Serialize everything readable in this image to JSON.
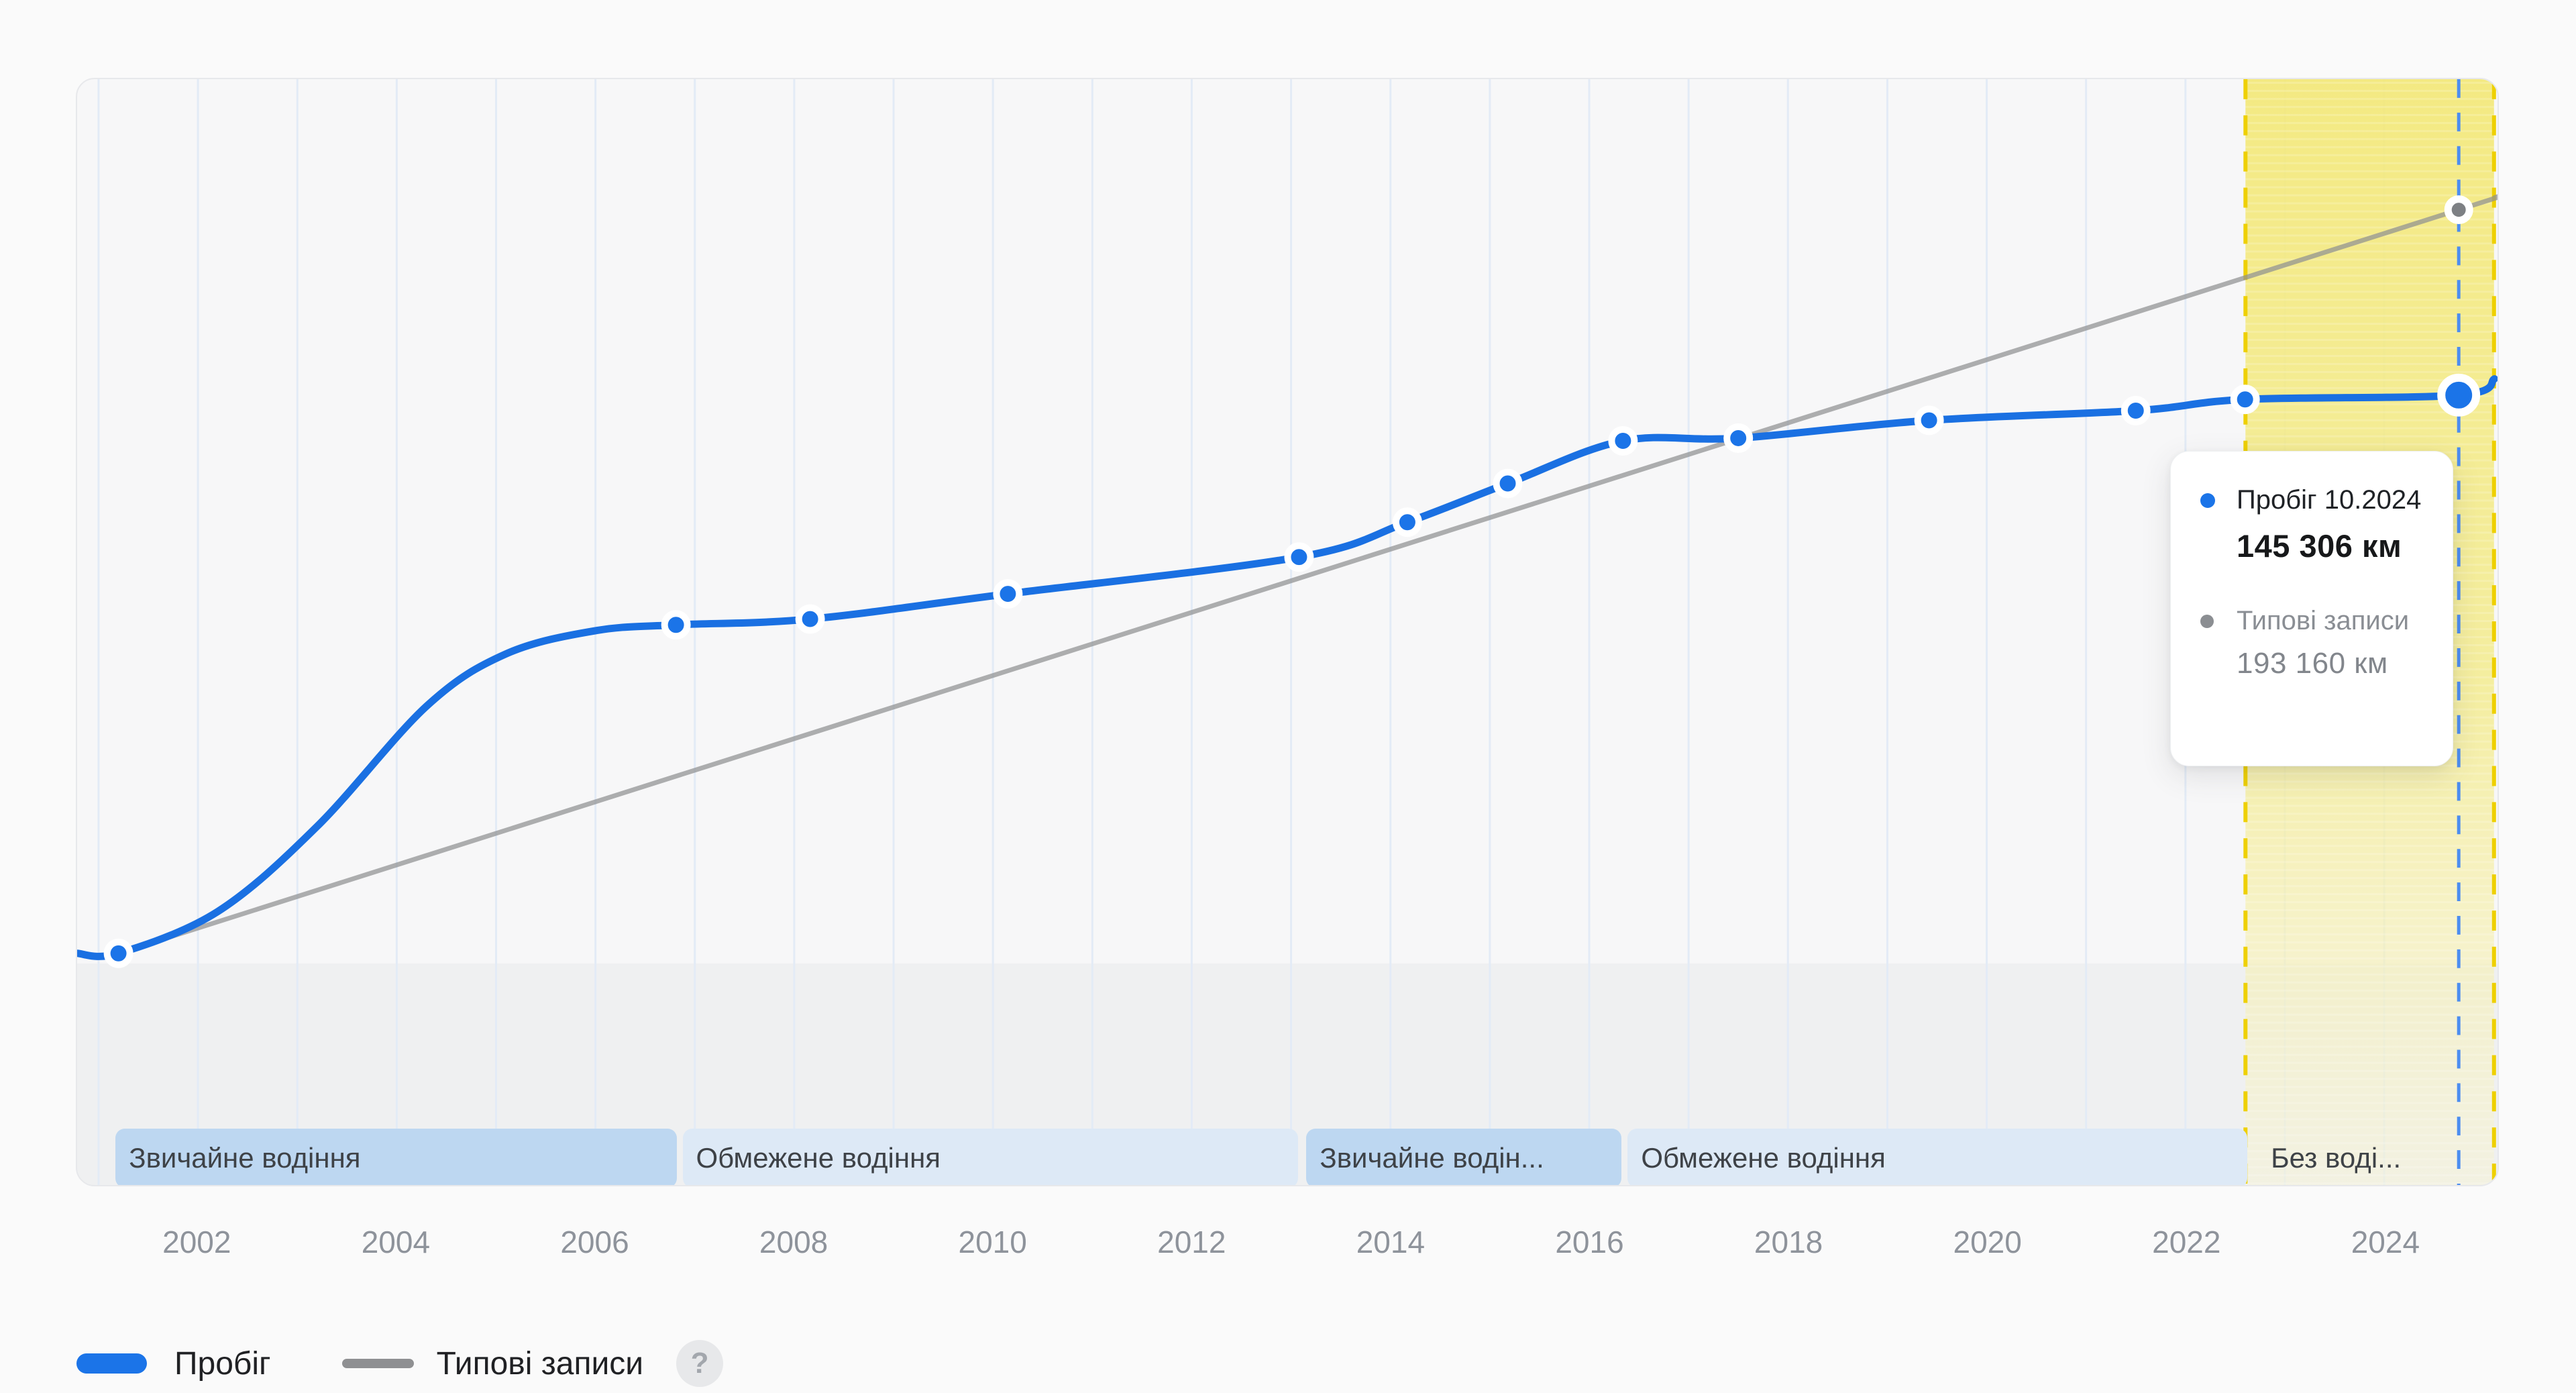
{
  "colors": {
    "accent_blue": "#1b74e8",
    "line_blue": "#1a70e2",
    "typical_gray": "#8f9092",
    "hover_dash_blue": "#4c8df0",
    "region_dash_yellow": "#eed002",
    "region_fill_yellow": "#f3e878",
    "band_dark_blue": "#bdd7f1",
    "band_light_blue": "#dde9f6",
    "gridline": "#e3ebf6",
    "plot_background": "#f7f7f8",
    "page_background": "#fafafa",
    "below_min_fill": "rgba(40,45,60,0.035)"
  },
  "tooltip": {
    "series1_label": "Пробіг 10.2024",
    "series1_value": "145 306 км",
    "series2_label": "Типові записи",
    "series2_value": "193 160 км"
  },
  "legend": {
    "items": [
      {
        "label": "Пробіг"
      },
      {
        "label": "Типові записи"
      }
    ],
    "help_icon": "?"
  },
  "chart_data": {
    "type": "line",
    "title": "",
    "y_axis": {
      "visible": false,
      "unit": "км"
    },
    "x_axis": {
      "range_years": [
        2000.78,
        2025.11
      ],
      "gridline_years": [
        2001,
        2002,
        2003,
        2004,
        2005,
        2006,
        2007,
        2008,
        2009,
        2010,
        2011,
        2012,
        2013,
        2014,
        2015,
        2016,
        2017,
        2018,
        2019,
        2020,
        2021,
        2022,
        2023,
        2024
      ],
      "tick_years": [
        2002,
        2004,
        2006,
        2008,
        2010,
        2012,
        2014,
        2016,
        2018,
        2020,
        2022,
        2024
      ]
    },
    "series": [
      {
        "name": "Пробіг",
        "color": "#1a70e2",
        "marker": "blue-dot-white-ring",
        "points": [
          {
            "year": 2001.2,
            "km": 1200
          },
          {
            "year": 2006.81,
            "km": 86000
          },
          {
            "year": 2008.16,
            "km": 87500
          },
          {
            "year": 2010.15,
            "km": 94000
          },
          {
            "year": 2013.08,
            "km": 103500
          },
          {
            "year": 2014.17,
            "km": 112500
          },
          {
            "year": 2015.18,
            "km": 122500
          },
          {
            "year": 2016.34,
            "km": 133500
          },
          {
            "year": 2017.5,
            "km": 134200
          },
          {
            "year": 2019.42,
            "km": 138800
          },
          {
            "year": 2021.5,
            "km": 141300
          },
          {
            "year": 2022.6,
            "km": 144200
          },
          {
            "year": 2024.75,
            "km": 145306
          }
        ],
        "shape_points": [
          {
            "year": 2000.78,
            "km": 1200
          },
          {
            "year": 2001.2,
            "km": 1200
          },
          {
            "year": 2002.2,
            "km": 12000
          },
          {
            "year": 2003.2,
            "km": 34000
          },
          {
            "year": 2004.3,
            "km": 65000
          },
          {
            "year": 2005.1,
            "km": 78500
          },
          {
            "year": 2006.0,
            "km": 84500
          },
          {
            "year": 2006.81,
            "km": 86000
          },
          {
            "year": 2008.16,
            "km": 87500
          },
          {
            "year": 2010.15,
            "km": 94000
          },
          {
            "year": 2013.08,
            "km": 103500
          },
          {
            "year": 2014.17,
            "km": 112500
          },
          {
            "year": 2015.18,
            "km": 122500
          },
          {
            "year": 2016.34,
            "km": 133500
          },
          {
            "year": 2017.5,
            "km": 134200
          },
          {
            "year": 2019.42,
            "km": 138800
          },
          {
            "year": 2021.5,
            "km": 141300
          },
          {
            "year": 2022.6,
            "km": 144200
          },
          {
            "year": 2024.75,
            "km": 145306
          },
          {
            "year": 2025.11,
            "km": 149500
          }
        ]
      },
      {
        "name": "Типові записи",
        "color": "#8f9092",
        "opacity": 0.72,
        "marker": "gray-dot-white-ring",
        "marker_year": 2024.75,
        "points": [
          {
            "year": 2001.2,
            "km": 1200
          },
          {
            "year": 2024.75,
            "km": 193160
          },
          {
            "year": 2025.11,
            "km": 196300
          }
        ]
      }
    ],
    "hover": {
      "year": 2024.75,
      "label": "10.2024",
      "mileage_km": 145306,
      "typical_km": 193160
    },
    "highlight_region": {
      "from_year": 2022.604,
      "to_year": 2025.105,
      "meaning_label": "Без воді..."
    },
    "mode_bands": [
      {
        "label": "Звичайне водіння",
        "from_year": 2001.17,
        "to_year": 2006.81,
        "tone": "normal"
      },
      {
        "label": "Обмежене водіння",
        "from_year": 2006.87,
        "to_year": 2013.06,
        "tone": "limited"
      },
      {
        "label": "Звичайне водін...",
        "from_year": 2013.14,
        "to_year": 2016.31,
        "tone": "normal"
      },
      {
        "label": "Обмежене водіння",
        "from_year": 2016.37,
        "to_year": 2022.6,
        "tone": "limited"
      },
      {
        "label": "Без воді...",
        "from_year": 2022.7,
        "to_year": 2025.1,
        "tone": "none"
      }
    ]
  }
}
